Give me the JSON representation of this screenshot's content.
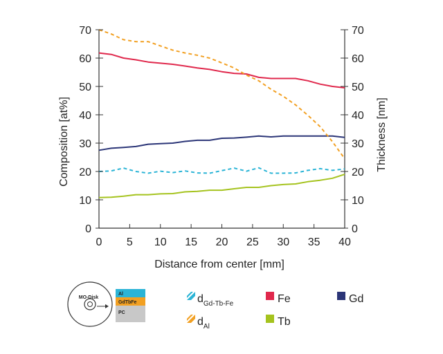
{
  "chart_data": {
    "type": "line",
    "xlabel": "Distance from center [mm]",
    "ylabel": "Composition [at%]",
    "y2label": "Thickness [nm]",
    "xlim": [
      0,
      40
    ],
    "ylim": [
      0,
      70
    ],
    "y2lim": [
      0,
      70
    ],
    "xticks": [
      0,
      5,
      10,
      15,
      20,
      25,
      30,
      35,
      40
    ],
    "yticks": [
      0,
      10,
      20,
      30,
      40,
      50,
      60,
      70
    ],
    "grid": false,
    "x": [
      0,
      2,
      4,
      6,
      8,
      10,
      12,
      14,
      16,
      18,
      20,
      22,
      24,
      26,
      28,
      30,
      32,
      34,
      36,
      38,
      40
    ],
    "series": [
      {
        "name": "Fe",
        "color": "#e0284c",
        "style": "solid",
        "axis": "left",
        "values": [
          61.8,
          61.3,
          60.0,
          59.4,
          58.6,
          58.2,
          57.8,
          57.2,
          56.5,
          56.0,
          55.2,
          54.6,
          54.4,
          53.2,
          52.8,
          52.8,
          52.8,
          52.0,
          50.8,
          50.0,
          49.5
        ]
      },
      {
        "name": "Gd",
        "color": "#2b3577",
        "style": "solid",
        "axis": "left",
        "values": [
          27.5,
          28.2,
          28.5,
          28.8,
          29.6,
          29.8,
          30.0,
          30.6,
          31.0,
          31.0,
          31.7,
          31.8,
          32.1,
          32.5,
          32.2,
          32.5,
          32.5,
          32.5,
          32.5,
          32.5,
          32.0
        ]
      },
      {
        "name": "Tb",
        "color": "#a5c31e",
        "style": "solid",
        "axis": "left",
        "values": [
          10.8,
          10.9,
          11.3,
          11.8,
          11.8,
          12.1,
          12.2,
          12.8,
          13.0,
          13.4,
          13.4,
          13.9,
          14.4,
          14.4,
          15.0,
          15.4,
          15.6,
          16.4,
          16.9,
          17.6,
          19.0
        ]
      },
      {
        "name": "d_Gd-Tb-Fe",
        "color": "#2bb4d6",
        "style": "dashed",
        "axis": "right",
        "values": [
          20.0,
          20.2,
          21.2,
          20.0,
          19.4,
          20.1,
          19.6,
          20.2,
          19.5,
          19.4,
          20.3,
          21.2,
          20.1,
          21.3,
          19.4,
          19.4,
          19.5,
          20.4,
          21.0,
          20.4,
          20.9
        ]
      },
      {
        "name": "d_Al",
        "color": "#f2a022",
        "style": "dashed",
        "axis": "right",
        "values": [
          70.0,
          68.5,
          66.5,
          65.8,
          65.8,
          64.3,
          62.8,
          61.8,
          61.0,
          60.0,
          58.3,
          56.5,
          54.0,
          52.0,
          49.0,
          46.5,
          43.5,
          39.8,
          35.8,
          30.5,
          24.5
        ]
      }
    ],
    "legend": {
      "placement": "bottom",
      "entries": [
        {
          "key": "d_Gd-Tb-Fe",
          "main": "d",
          "sub": "Gd-Tb-Fe",
          "marker": "dashed-swatch",
          "color": "#2bb4d6"
        },
        {
          "key": "d_Al",
          "main": "d",
          "sub": "Al",
          "marker": "dashed-swatch",
          "color": "#f2a022"
        },
        {
          "key": "Fe",
          "main": "Fe",
          "sub": "",
          "marker": "square",
          "color": "#e0284c"
        },
        {
          "key": "Tb",
          "main": "Tb",
          "sub": "",
          "marker": "square",
          "color": "#a5c31e"
        },
        {
          "key": "Gd",
          "main": "Gd",
          "sub": "",
          "marker": "square",
          "color": "#2b3577"
        }
      ]
    }
  },
  "inset": {
    "disk_label": "MO-Disk",
    "layers": [
      {
        "label": "Al",
        "color": "#2bb4d6"
      },
      {
        "label": "GdTbFe",
        "color": "#f2a022"
      },
      {
        "label": "PC",
        "color": "#c8c8c8"
      }
    ]
  }
}
